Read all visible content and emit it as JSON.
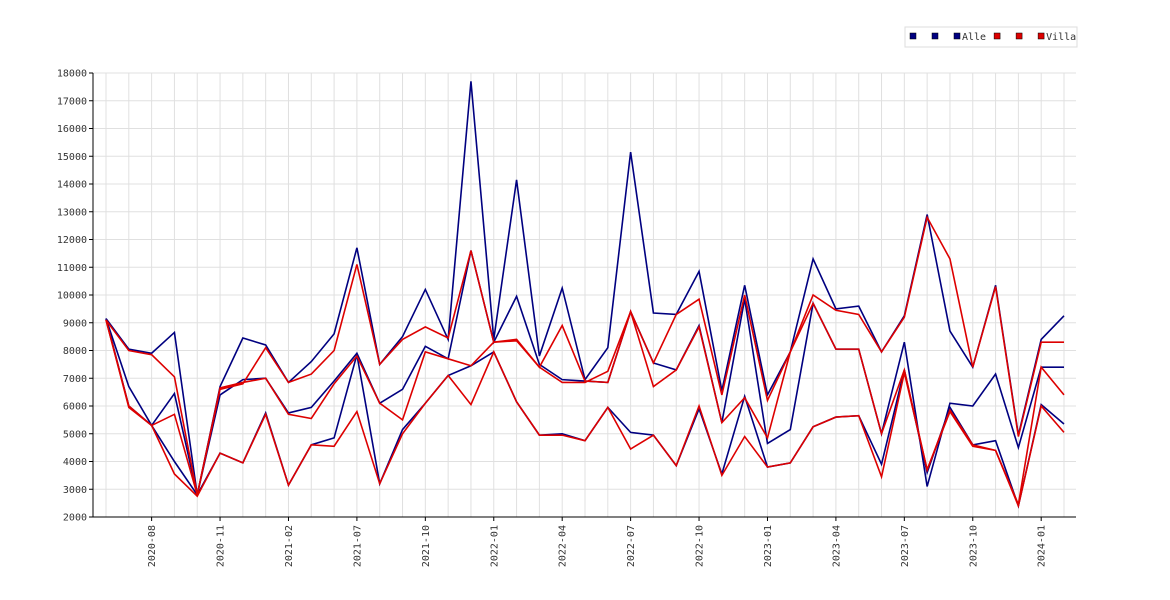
{
  "chart_data": {
    "type": "line",
    "categories": [
      null,
      null,
      "2020-08",
      null,
      null,
      "2020-11",
      null,
      null,
      "2021-02",
      null,
      null,
      "2021-07",
      null,
      null,
      "2021-10",
      null,
      null,
      "2022-01",
      null,
      null,
      "2022-04",
      null,
      null,
      "2022-07",
      null,
      null,
      "2022-10",
      null,
      null,
      "2023-01",
      null,
      null,
      "2023-04",
      null,
      null,
      "2023-07",
      null,
      null,
      "2023-10",
      null,
      null,
      "2024-01",
      null
    ],
    "ylim": [
      2000,
      18000
    ],
    "yticks": [
      2000,
      3000,
      4000,
      5000,
      6000,
      7000,
      8000,
      9000,
      10000,
      11000,
      12000,
      13000,
      14000,
      15000,
      16000,
      17000,
      18000
    ],
    "grid": true,
    "legend": "upper right",
    "series": [
      {
        "color": "#000080",
        "values": [
          9150,
          8050,
          7900,
          8650,
          2800,
          6700,
          8450,
          8200,
          6850,
          7600,
          8600,
          11700,
          7500,
          8500,
          10200,
          8400,
          17700,
          8400,
          14150,
          7800,
          10250,
          6950,
          8100,
          15150,
          9350,
          9300,
          10850,
          6550,
          10350,
          6400,
          7950,
          11300,
          9500,
          9600,
          7950,
          9250,
          12900,
          8700,
          7400,
          10350,
          4950,
          8400,
          9250
        ]
      },
      {
        "color": "#000080",
        "values": [
          9150,
          6700,
          5300,
          6450,
          2800,
          6400,
          6950,
          7000,
          5750,
          5950,
          6900,
          7900,
          6100,
          6600,
          8150,
          7700,
          11600,
          8300,
          9950,
          7500,
          6950,
          6900,
          6850,
          9400,
          7550,
          7300,
          8900,
          5400,
          9850,
          4650,
          5150,
          9700,
          8050,
          8050,
          5000,
          8300,
          3100,
          6100,
          6000,
          7150,
          4500,
          7400,
          7400
        ]
      },
      {
        "name": "Alle",
        "color": "#000080",
        "values": [
          9150,
          6000,
          5300,
          4000,
          2800,
          4300,
          3950,
          5750,
          3150,
          4600,
          4850,
          7850,
          3200,
          5150,
          6100,
          7100,
          7450,
          7950,
          6150,
          4950,
          5000,
          4750,
          5950,
          5050,
          4950,
          3850,
          5900,
          3550,
          6350,
          3800,
          3950,
          5250,
          5600,
          5650,
          3900,
          7300,
          3600,
          5950,
          4600,
          4750,
          2400,
          6050,
          5350
        ]
      },
      {
        "color": "#dd0000",
        "values": [
          9100,
          8000,
          7850,
          7050,
          2800,
          6600,
          6800,
          8100,
          6850,
          7150,
          8000,
          11100,
          7500,
          8400,
          8850,
          8450,
          11600,
          8300,
          8400,
          7400,
          8900,
          6900,
          6850,
          9400,
          7550,
          9300,
          9850,
          6400,
          10000,
          6200,
          7950,
          10000,
          9450,
          9300,
          7950,
          9200,
          12800,
          11300,
          7400,
          10300,
          4900,
          8300,
          8300
        ]
      },
      {
        "color": "#dd0000",
        "values": [
          9100,
          6000,
          5300,
          5700,
          2800,
          6650,
          6850,
          7000,
          5700,
          5550,
          6800,
          7800,
          6100,
          5500,
          7950,
          7700,
          7450,
          8300,
          8350,
          7400,
          6850,
          6850,
          7250,
          9400,
          6700,
          7300,
          8850,
          5400,
          6300,
          4850,
          7950,
          9700,
          8050,
          8050,
          5000,
          7300,
          3700,
          5850,
          4600,
          4400,
          2450,
          7400,
          6400
        ]
      },
      {
        "name": "Villa",
        "color": "#dd0000",
        "values": [
          9100,
          5950,
          5300,
          3550,
          2750,
          4300,
          3950,
          5700,
          3150,
          4600,
          4550,
          5800,
          3200,
          5000,
          6100,
          7100,
          6050,
          7950,
          6150,
          4950,
          4950,
          4750,
          5950,
          4450,
          4950,
          3850,
          6000,
          3500,
          4900,
          3800,
          3950,
          5250,
          5600,
          5650,
          3450,
          7200,
          3700,
          5800,
          4550,
          4400,
          2400,
          6000,
          5050
        ]
      }
    ]
  }
}
